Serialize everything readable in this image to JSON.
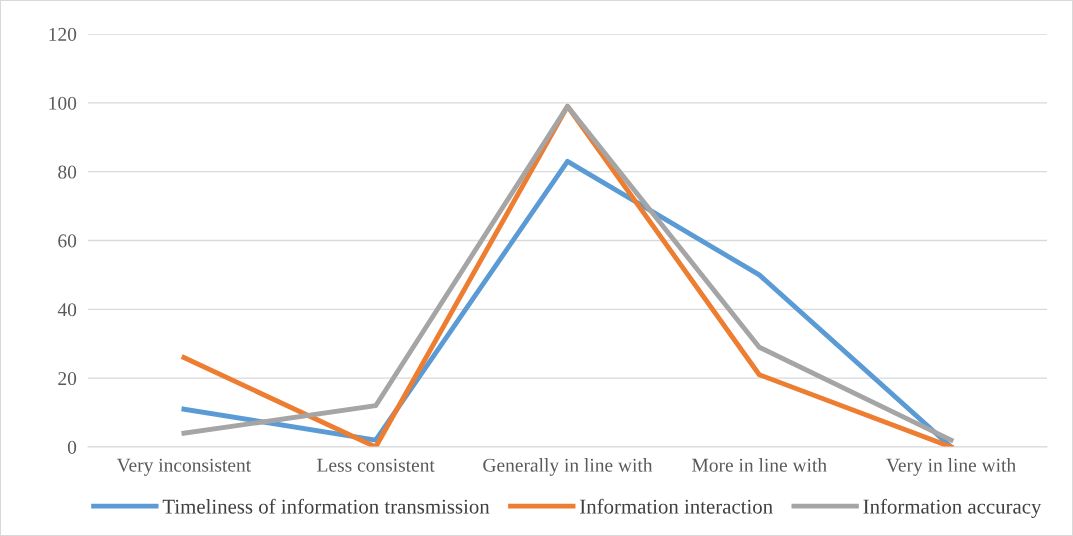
{
  "chart_data": {
    "type": "line",
    "categories": [
      "Very inconsistent",
      "Less consistent",
      "Generally in line with",
      "More in line with",
      "Very in line with"
    ],
    "series": [
      {
        "name": "Timeliness of information transmission",
        "color": "#5b9bd5",
        "values": [
          11,
          2,
          83,
          50,
          0
        ]
      },
      {
        "name": "Information interaction",
        "color": "#ed7d31",
        "values": [
          26,
          0,
          99,
          21,
          0
        ]
      },
      {
        "name": "Information accuracy",
        "color": "#a5a5a5",
        "values": [
          4,
          12,
          99,
          29,
          2
        ]
      }
    ],
    "ylim": [
      0,
      120
    ],
    "yticks": [
      0,
      20,
      40,
      60,
      80,
      100,
      120
    ],
    "grid": "y",
    "legend": "bottom",
    "marker": "none",
    "line_style": "solid"
  }
}
